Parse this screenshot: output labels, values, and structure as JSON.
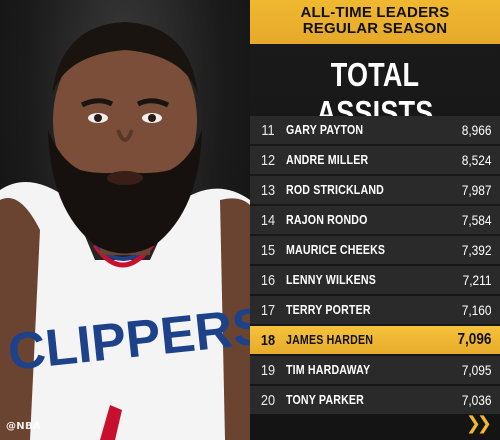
{
  "banner": {
    "line1": "ALL-TIME LEADERS",
    "line2": "REGULAR SEASON"
  },
  "title": "TOTAL ASSISTS",
  "watermark": "@NBA",
  "leaders": [
    {
      "rank": "11",
      "name": "GARY PAYTON",
      "value": "8,966"
    },
    {
      "rank": "12",
      "name": "ANDRE MILLER",
      "value": "8,524"
    },
    {
      "rank": "13",
      "name": "ROD STRICKLAND",
      "value": "7,987"
    },
    {
      "rank": "14",
      "name": "RAJON RONDO",
      "value": "7,584"
    },
    {
      "rank": "15",
      "name": "MAURICE CHEEKS",
      "value": "7,392"
    },
    {
      "rank": "16",
      "name": "LENNY WILKENS",
      "value": "7,211"
    },
    {
      "rank": "17",
      "name": "TERRY PORTER",
      "value": "7,160"
    },
    {
      "rank": "18",
      "name": "JAMES HARDEN",
      "value": "7,096"
    },
    {
      "rank": "19",
      "name": "TIM HARDAWAY",
      "value": "7,095"
    },
    {
      "rank": "20",
      "name": "TONY PARKER",
      "value": "7,036"
    }
  ],
  "highlight_rank": "18",
  "colors": {
    "accent": "#f0b830",
    "row_bg": "#2a2a2a",
    "jersey": "#f4f4f4",
    "jersey_lettering": "#1d428a"
  },
  "icons": {
    "next": "double-chevron-right-icon"
  },
  "jersey_text": "CLIPPERS"
}
